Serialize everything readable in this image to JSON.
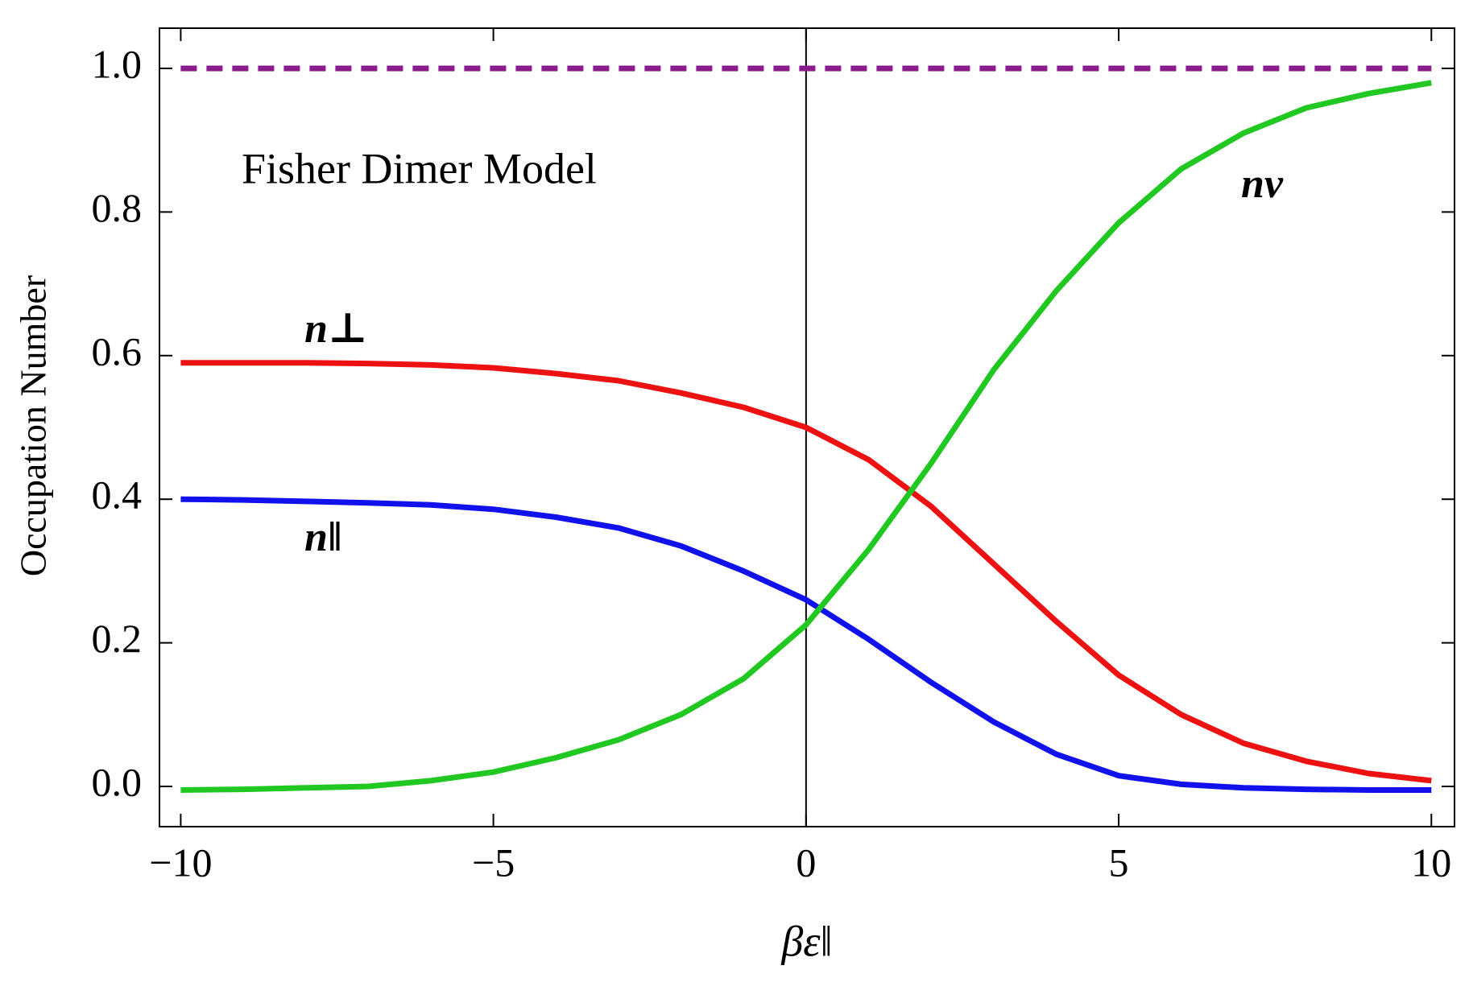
{
  "chart_data": {
    "type": "line",
    "annotations": [
      "Fisher Dimer Model"
    ],
    "xlabel": "βε‖",
    "ylabel": "Occupation Number",
    "x": [
      -10,
      -9,
      -8,
      -7,
      -6,
      -5,
      -4,
      -3,
      -2,
      -1,
      0,
      1,
      2,
      3,
      4,
      5,
      6,
      7,
      8,
      9,
      10
    ],
    "series": [
      {
        "name": "n⊥",
        "color": "#ee1111",
        "values": [
          0.59,
          0.59,
          0.59,
          0.589,
          0.587,
          0.583,
          0.575,
          0.565,
          0.548,
          0.528,
          0.5,
          0.455,
          0.39,
          0.31,
          0.23,
          0.155,
          0.1,
          0.06,
          0.035,
          0.018,
          0.008
        ]
      },
      {
        "name": "n‖",
        "color": "#1111ee",
        "values": [
          0.4,
          0.399,
          0.397,
          0.395,
          0.392,
          0.386,
          0.375,
          0.36,
          0.335,
          0.3,
          0.26,
          0.205,
          0.145,
          0.09,
          0.045,
          0.015,
          0.003,
          -0.002,
          -0.004,
          -0.005,
          -0.005
        ]
      },
      {
        "name": "nν",
        "color": "#22c822",
        "values": [
          -0.005,
          -0.004,
          -0.002,
          0.0,
          0.008,
          0.02,
          0.04,
          0.065,
          0.1,
          0.15,
          0.225,
          0.33,
          0.45,
          0.58,
          0.69,
          0.785,
          0.86,
          0.91,
          0.945,
          0.965,
          0.98
        ]
      },
      {
        "color": "#8b1a8b",
        "dashed": true,
        "values": [
          1,
          1,
          1,
          1,
          1,
          1,
          1,
          1,
          1,
          1,
          1,
          1,
          1,
          1,
          1,
          1,
          1,
          1,
          1,
          1,
          1
        ]
      }
    ],
    "xlim": [
      -10.34,
      10.37
    ],
    "ylim": [
      -0.056,
      1.056
    ],
    "xticks": [
      {
        "value": -10,
        "label": "−10"
      },
      {
        "value": -5,
        "label": "−5"
      },
      0,
      5,
      10
    ],
    "yticks": [
      {
        "value": 0,
        "label": "0.0"
      },
      0.2,
      0.4,
      0.6,
      0.8,
      {
        "value": 1,
        "label": "1.0"
      }
    ]
  }
}
